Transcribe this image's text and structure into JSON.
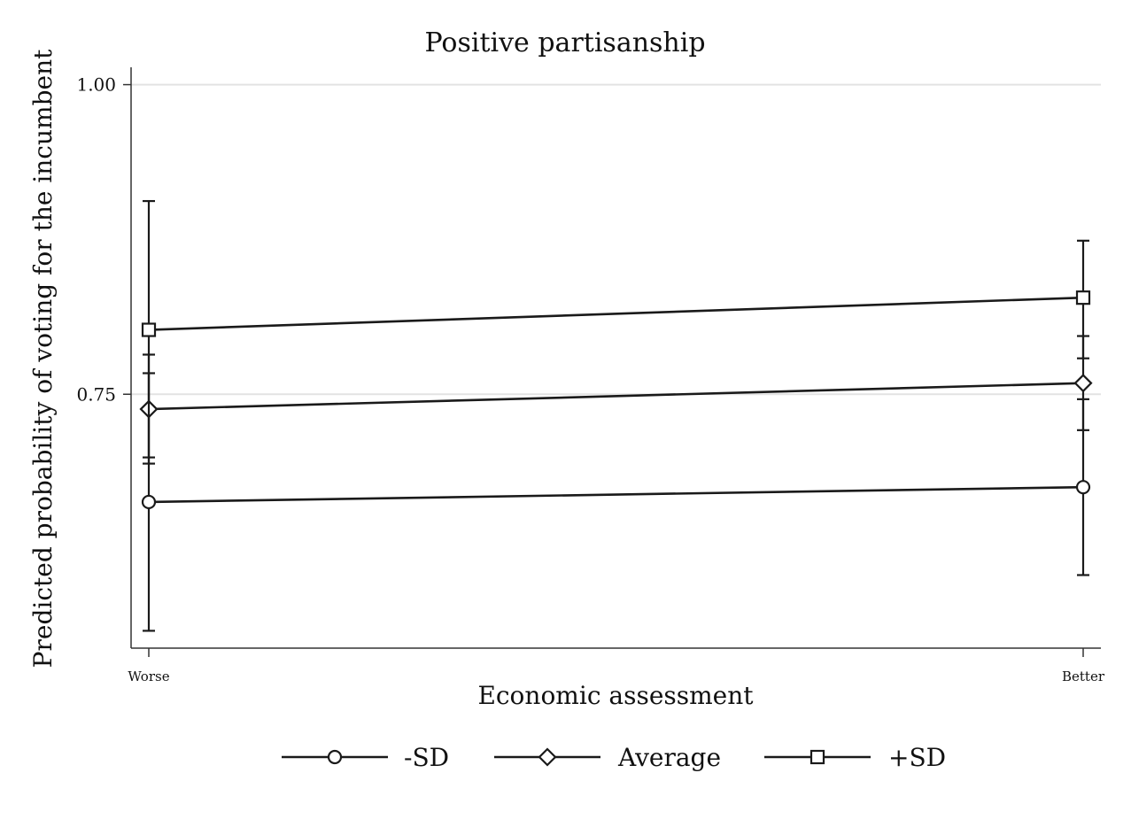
{
  "chart_data": {
    "type": "line",
    "title": "Positive partisanship",
    "xlabel": "Economic assessment",
    "ylabel": "Predicted probability of voting for the incumbent",
    "categories": [
      "Worse",
      "Better"
    ],
    "y_ticks": [
      0.75,
      1.0
    ],
    "y_tick_labels": [
      "0.75",
      "1.00"
    ],
    "ylim": [
      0.545,
      1.014
    ],
    "grid": true,
    "legend_position": "bottom",
    "series": [
      {
        "name": "-SD",
        "marker": "circle",
        "values": [
          0.663,
          0.675
        ],
        "ci_low": [
          0.559,
          0.604
        ],
        "ci_high": [
          0.767,
          0.746
        ]
      },
      {
        "name": "Average",
        "marker": "diamond",
        "values": [
          0.738,
          0.759
        ],
        "ci_low": [
          0.694,
          0.721
        ],
        "ci_high": [
          0.782,
          0.797
        ]
      },
      {
        "name": "+SD",
        "marker": "square",
        "values": [
          0.802,
          0.828
        ],
        "ci_low": [
          0.699,
          0.779
        ],
        "ci_high": [
          0.906,
          0.874
        ]
      }
    ],
    "colors": {
      "line": "#1a1a1a",
      "grid": "#e3e3e3",
      "axis": "#333333"
    }
  }
}
